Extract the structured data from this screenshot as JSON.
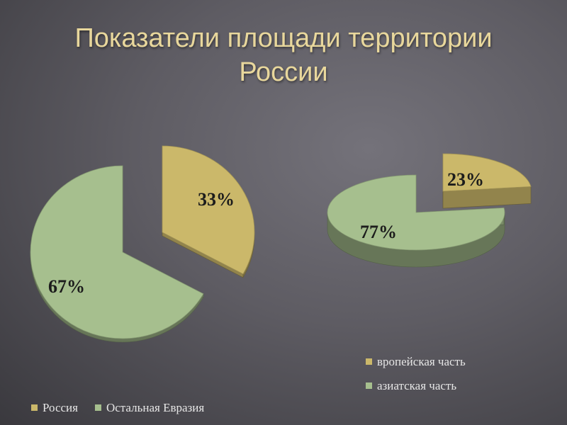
{
  "title": "Показатели площади территории России",
  "title_lines": [
    "Показатели площади территории",
    "России"
  ],
  "colors": {
    "tan": "#cbb86a",
    "green": "#a6bf8e",
    "title": "#e8d79c"
  },
  "chart_data": [
    {
      "type": "pie",
      "title": "",
      "legend_position": "bottom",
      "slices": [
        {
          "name": "Россия",
          "value": 33,
          "label": "33%",
          "color": "#cbb86a"
        },
        {
          "name": "Остальная Евразия",
          "value": 67,
          "label": "67%",
          "color": "#a6bf8e"
        }
      ]
    },
    {
      "type": "pie",
      "title": "",
      "legend_position": "bottom-right",
      "slices": [
        {
          "name": "вропейская часть",
          "value": 23,
          "label": "23%",
          "color": "#cbb86a"
        },
        {
          "name": "азиатская часть",
          "value": 77,
          "label": "77%",
          "color": "#a6bf8e"
        }
      ]
    }
  ]
}
